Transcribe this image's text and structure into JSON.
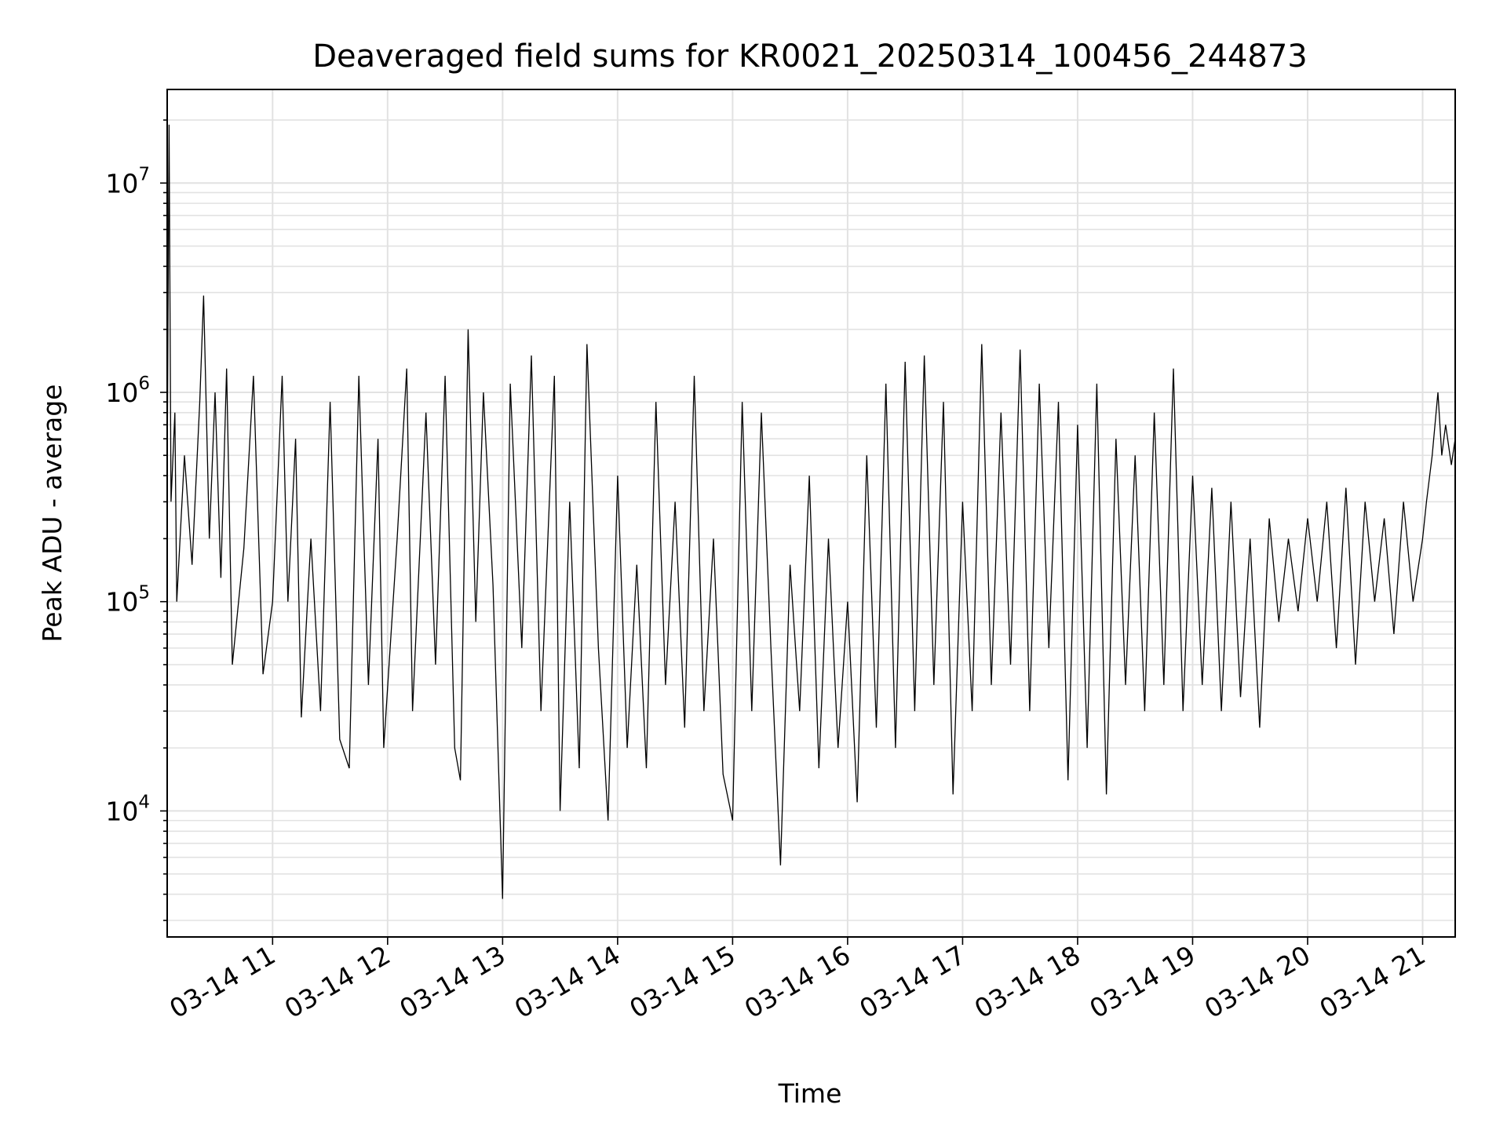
{
  "chart_data": {
    "type": "line",
    "title": "Deaveraged field sums for KR0021_20250314_100456_244873",
    "xlabel": "Time",
    "ylabel": "Peak ADU - average",
    "yscale": "log",
    "grid": true,
    "xlim": [
      "03-14 10:05",
      "03-14 21:17"
    ],
    "ylim": [
      2500,
      28000000
    ],
    "x_ticks": [
      "03-14 11",
      "03-14 12",
      "03-14 13",
      "03-14 14",
      "03-14 15",
      "03-14 16",
      "03-14 17",
      "03-14 18",
      "03-14 19",
      "03-14 20",
      "03-14 21"
    ],
    "y_ticks": [
      {
        "value": 10000,
        "base": "10",
        "exp": "4"
      },
      {
        "value": 100000,
        "base": "10",
        "exp": "5"
      },
      {
        "value": 1000000,
        "base": "10",
        "exp": "6"
      },
      {
        "value": 10000000,
        "base": "10",
        "exp": "7"
      }
    ],
    "series": [
      {
        "color": "#000000",
        "points": [
          [
            "03-14 10:05",
            400000
          ],
          [
            "03-14 10:06",
            19000000
          ],
          [
            "03-14 10:07",
            300000
          ],
          [
            "03-14 10:09",
            800000
          ],
          [
            "03-14 10:10",
            100000
          ],
          [
            "03-14 10:14",
            500000
          ],
          [
            "03-14 10:18",
            150000
          ],
          [
            "03-14 10:22",
            900000
          ],
          [
            "03-14 10:24",
            2900000
          ],
          [
            "03-14 10:27",
            200000
          ],
          [
            "03-14 10:30",
            1000000
          ],
          [
            "03-14 10:33",
            130000
          ],
          [
            "03-14 10:36",
            1300000
          ],
          [
            "03-14 10:39",
            50000
          ],
          [
            "03-14 10:45",
            180000
          ],
          [
            "03-14 10:50",
            1200000
          ],
          [
            "03-14 10:55",
            45000
          ],
          [
            "03-14 11:00",
            100000
          ],
          [
            "03-14 11:05",
            1200000
          ],
          [
            "03-14 11:08",
            100000
          ],
          [
            "03-14 11:12",
            600000
          ],
          [
            "03-14 11:15",
            28000
          ],
          [
            "03-14 11:20",
            200000
          ],
          [
            "03-14 11:25",
            30000
          ],
          [
            "03-14 11:30",
            900000
          ],
          [
            "03-14 11:35",
            22000
          ],
          [
            "03-14 11:40",
            16000
          ],
          [
            "03-14 11:45",
            1200000
          ],
          [
            "03-14 11:50",
            40000
          ],
          [
            "03-14 11:55",
            600000
          ],
          [
            "03-14 11:58",
            20000
          ],
          [
            "03-14 12:05",
            200000
          ],
          [
            "03-14 12:10",
            1300000
          ],
          [
            "03-14 12:13",
            30000
          ],
          [
            "03-14 12:20",
            800000
          ],
          [
            "03-14 12:25",
            50000
          ],
          [
            "03-14 12:30",
            1200000
          ],
          [
            "03-14 12:35",
            20000
          ],
          [
            "03-14 12:38",
            14000
          ],
          [
            "03-14 12:42",
            2000000
          ],
          [
            "03-14 12:46",
            80000
          ],
          [
            "03-14 12:50",
            1000000
          ],
          [
            "03-14 12:55",
            120000
          ],
          [
            "03-14 13:00",
            3800
          ],
          [
            "03-14 13:04",
            1100000
          ],
          [
            "03-14 13:10",
            60000
          ],
          [
            "03-14 13:15",
            1500000
          ],
          [
            "03-14 13:20",
            30000
          ],
          [
            "03-14 13:27",
            1200000
          ],
          [
            "03-14 13:30",
            10000
          ],
          [
            "03-14 13:35",
            300000
          ],
          [
            "03-14 13:40",
            16000
          ],
          [
            "03-14 13:44",
            1700000
          ],
          [
            "03-14 13:50",
            60000
          ],
          [
            "03-14 13:55",
            9000
          ],
          [
            "03-14 14:00",
            400000
          ],
          [
            "03-14 14:05",
            20000
          ],
          [
            "03-14 14:10",
            150000
          ],
          [
            "03-14 14:15",
            16000
          ],
          [
            "03-14 14:20",
            900000
          ],
          [
            "03-14 14:25",
            40000
          ],
          [
            "03-14 14:30",
            300000
          ],
          [
            "03-14 14:35",
            25000
          ],
          [
            "03-14 14:40",
            1200000
          ],
          [
            "03-14 14:45",
            30000
          ],
          [
            "03-14 14:50",
            200000
          ],
          [
            "03-14 14:55",
            15000
          ],
          [
            "03-14 15:00",
            9000
          ],
          [
            "03-14 15:05",
            900000
          ],
          [
            "03-14 15:10",
            30000
          ],
          [
            "03-14 15:15",
            800000
          ],
          [
            "03-14 15:20",
            60000
          ],
          [
            "03-14 15:25",
            5500
          ],
          [
            "03-14 15:30",
            150000
          ],
          [
            "03-14 15:35",
            30000
          ],
          [
            "03-14 15:40",
            400000
          ],
          [
            "03-14 15:45",
            16000
          ],
          [
            "03-14 15:50",
            200000
          ],
          [
            "03-14 15:55",
            20000
          ],
          [
            "03-14 16:00",
            100000
          ],
          [
            "03-14 16:05",
            11000
          ],
          [
            "03-14 16:10",
            500000
          ],
          [
            "03-14 16:15",
            25000
          ],
          [
            "03-14 16:20",
            1100000
          ],
          [
            "03-14 16:25",
            20000
          ],
          [
            "03-14 16:30",
            1400000
          ],
          [
            "03-14 16:35",
            30000
          ],
          [
            "03-14 16:40",
            1500000
          ],
          [
            "03-14 16:45",
            40000
          ],
          [
            "03-14 16:50",
            900000
          ],
          [
            "03-14 16:55",
            12000
          ],
          [
            "03-14 17:00",
            300000
          ],
          [
            "03-14 17:05",
            30000
          ],
          [
            "03-14 17:10",
            1700000
          ],
          [
            "03-14 17:15",
            40000
          ],
          [
            "03-14 17:20",
            800000
          ],
          [
            "03-14 17:25",
            50000
          ],
          [
            "03-14 17:30",
            1600000
          ],
          [
            "03-14 17:35",
            30000
          ],
          [
            "03-14 17:40",
            1100000
          ],
          [
            "03-14 17:45",
            60000
          ],
          [
            "03-14 17:50",
            900000
          ],
          [
            "03-14 17:55",
            14000
          ],
          [
            "03-14 18:00",
            700000
          ],
          [
            "03-14 18:05",
            20000
          ],
          [
            "03-14 18:10",
            1100000
          ],
          [
            "03-14 18:15",
            12000
          ],
          [
            "03-14 18:20",
            600000
          ],
          [
            "03-14 18:25",
            40000
          ],
          [
            "03-14 18:30",
            500000
          ],
          [
            "03-14 18:35",
            30000
          ],
          [
            "03-14 18:40",
            800000
          ],
          [
            "03-14 18:45",
            40000
          ],
          [
            "03-14 18:50",
            1300000
          ],
          [
            "03-14 18:55",
            30000
          ],
          [
            "03-14 19:00",
            400000
          ],
          [
            "03-14 19:05",
            40000
          ],
          [
            "03-14 19:10",
            350000
          ],
          [
            "03-14 19:15",
            30000
          ],
          [
            "03-14 19:20",
            300000
          ],
          [
            "03-14 19:25",
            35000
          ],
          [
            "03-14 19:30",
            200000
          ],
          [
            "03-14 19:35",
            25000
          ],
          [
            "03-14 19:40",
            250000
          ],
          [
            "03-14 19:45",
            80000
          ],
          [
            "03-14 19:50",
            200000
          ],
          [
            "03-14 19:55",
            90000
          ],
          [
            "03-14 20:00",
            250000
          ],
          [
            "03-14 20:05",
            100000
          ],
          [
            "03-14 20:10",
            300000
          ],
          [
            "03-14 20:15",
            60000
          ],
          [
            "03-14 20:20",
            350000
          ],
          [
            "03-14 20:25",
            50000
          ],
          [
            "03-14 20:30",
            300000
          ],
          [
            "03-14 20:35",
            100000
          ],
          [
            "03-14 20:40",
            250000
          ],
          [
            "03-14 20:45",
            70000
          ],
          [
            "03-14 20:50",
            300000
          ],
          [
            "03-14 20:55",
            100000
          ],
          [
            "03-14 21:00",
            200000
          ],
          [
            "03-14 21:02",
            300000
          ],
          [
            "03-14 21:05",
            500000
          ],
          [
            "03-14 21:08",
            1000000
          ],
          [
            "03-14 21:10",
            500000
          ],
          [
            "03-14 21:12",
            700000
          ],
          [
            "03-14 21:15",
            450000
          ],
          [
            "03-14 21:17",
            600000
          ]
        ]
      }
    ]
  }
}
